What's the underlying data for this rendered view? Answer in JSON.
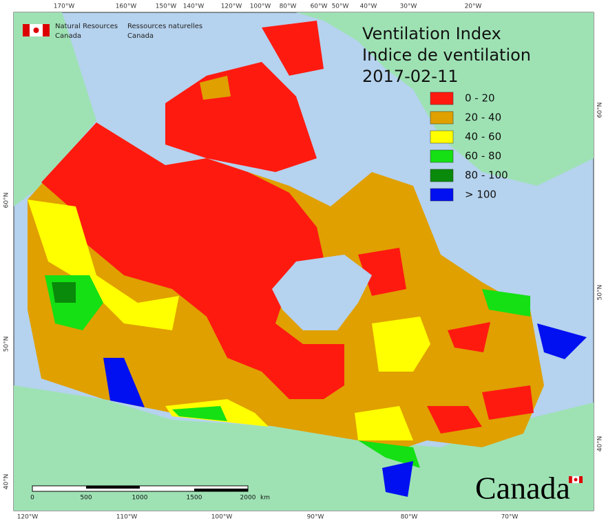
{
  "header": {
    "agency_en": [
      "Natural Resources",
      "Canada"
    ],
    "agency_fr": [
      "Ressources naturelles",
      "Canada"
    ]
  },
  "title": [
    "Ventilation Index",
    "Indice de ventilation",
    "2017-02-11"
  ],
  "legend": [
    {
      "label": "0 - 20",
      "color": "#ff1a10"
    },
    {
      "label": "20 - 40",
      "color": "#e0a000"
    },
    {
      "label": "40 - 60",
      "color": "#ffff00"
    },
    {
      "label": "60 - 80",
      "color": "#14e014"
    },
    {
      "label": "80 - 100",
      "color": "#0a8a0a"
    },
    {
      "label": "> 100",
      "color": "#0010f0"
    }
  ],
  "graticule": {
    "top": [
      "170°W",
      "160°W",
      "150°W",
      "140°W",
      "120°W",
      "100°W",
      "80°W",
      "60°W",
      "50°W",
      "40°W",
      "30°W",
      "20°W"
    ],
    "bottom": [
      "120°W",
      "110°W",
      "100°W",
      "90°W",
      "80°W",
      "70°W"
    ],
    "left": [
      "60°N",
      "50°N",
      "40°N"
    ],
    "right": [
      "60°N",
      "50°N",
      "40°N"
    ]
  },
  "scale_bar": {
    "labels": [
      "0",
      "500",
      "1000",
      "1500",
      "2000"
    ],
    "unit": "km"
  },
  "wordmark": "Canada"
}
